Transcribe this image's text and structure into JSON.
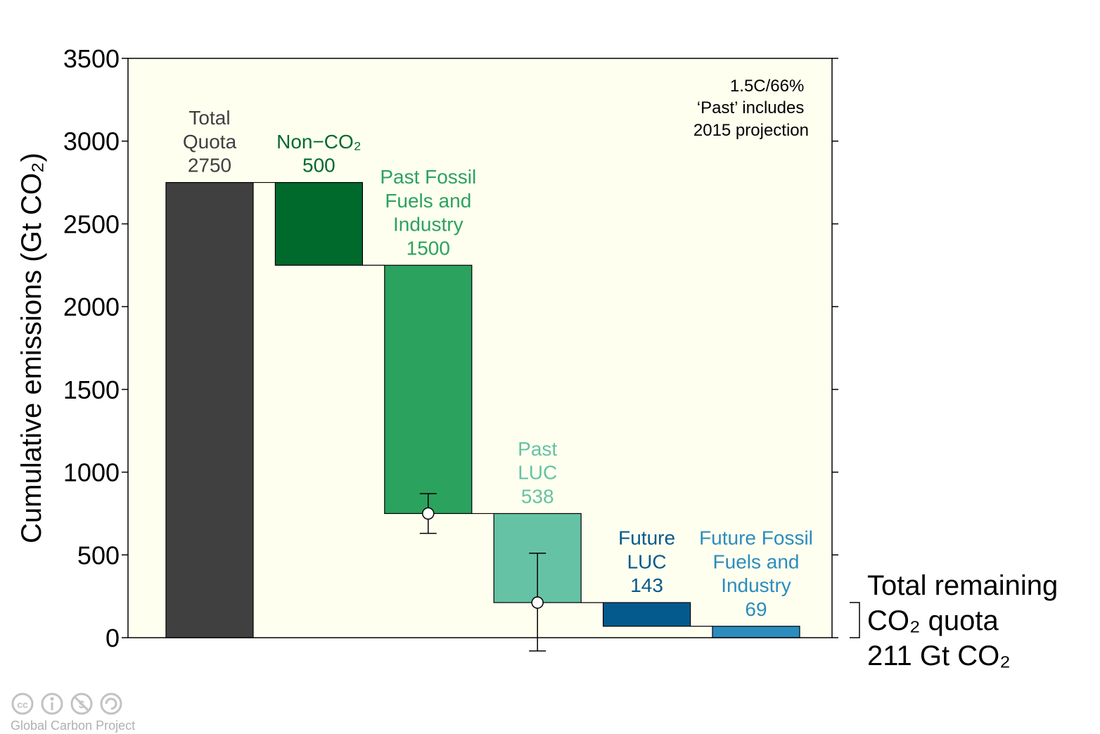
{
  "chart_data": {
    "type": "bar",
    "subtype": "waterfall",
    "ylabel": "Cumulative emissions (Gt CO₂)",
    "ylim": [
      0,
      3500
    ],
    "yticks": [
      0,
      500,
      1000,
      1500,
      2000,
      2500,
      3000,
      3500
    ],
    "grid": false,
    "annotation": [
      "1.5C/66%",
      "‘Past’ includes",
      "2015 projection"
    ],
    "bars": [
      {
        "label_lines": [
          "Total",
          "Quota",
          "2750"
        ],
        "value": 2750,
        "start": 0,
        "end": 2750,
        "color": "#404040",
        "label_color": "#404040"
      },
      {
        "label_lines": [
          "Non−CO₂",
          "500"
        ],
        "value": 500,
        "start": 2250,
        "end": 2750,
        "color": "#006a2d",
        "label_color": "#006a2d"
      },
      {
        "label_lines": [
          "Past Fossil",
          "Fuels and",
          "Industry",
          "1500"
        ],
        "value": 1500,
        "start": 750,
        "end": 2250,
        "color": "#2ca25f",
        "label_color": "#2ca25f",
        "error": {
          "point": 750,
          "low": 630,
          "high": 870
        }
      },
      {
        "label_lines": [
          "Past",
          "LUC",
          "538"
        ],
        "value": 538,
        "start": 212,
        "end": 750,
        "color": "#66c2a4",
        "label_color": "#66c2a4",
        "error": {
          "point": 212,
          "low": -80,
          "high": 510
        }
      },
      {
        "label_lines": [
          "Future",
          "LUC",
          "143"
        ],
        "value": 143,
        "start": 69,
        "end": 212,
        "color": "#045a8d",
        "label_color": "#045a8d"
      },
      {
        "label_lines": [
          "Future Fossil",
          "Fuels and",
          "Industry",
          "69"
        ],
        "value": 69,
        "start": 0,
        "end": 69,
        "color": "#2b8cbe",
        "label_color": "#2b8cbe"
      }
    ],
    "remaining": {
      "lines": [
        "Total remaining",
        "CO₂ quota",
        "211 Gt CO₂"
      ],
      "value": 211
    }
  },
  "footer": {
    "credit": "Global Carbon Project",
    "license_icons": [
      "cc-icon",
      "attribution-icon",
      "noncommercial-icon",
      "sharealike-icon"
    ]
  }
}
